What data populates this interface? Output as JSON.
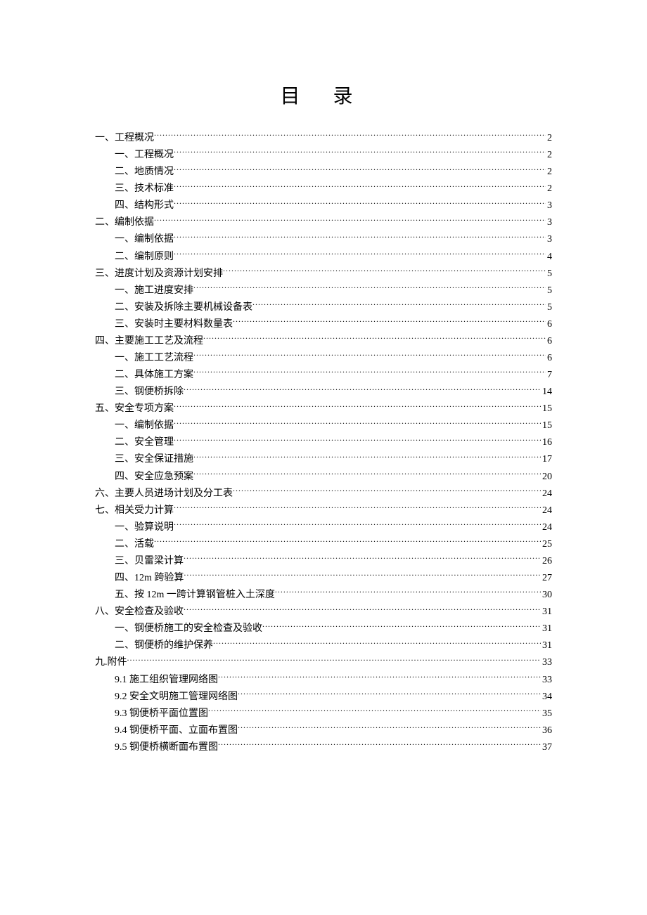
{
  "title": "目 录",
  "toc": [
    {
      "level": 1,
      "label": "一、工程概况",
      "page": "2"
    },
    {
      "level": 2,
      "label": "一、工程概况",
      "page": "2"
    },
    {
      "level": 2,
      "label": "二、地质情况",
      "page": "2"
    },
    {
      "level": 2,
      "label": "三、技术标准",
      "page": "2"
    },
    {
      "level": 2,
      "label": "四、结构形式",
      "page": "3"
    },
    {
      "level": 1,
      "label": "二、编制依据",
      "page": "3"
    },
    {
      "level": 2,
      "label": "一、编制依据",
      "page": "3"
    },
    {
      "level": 2,
      "label": "二、编制原则",
      "page": "4"
    },
    {
      "level": 1,
      "label": "三、进度计划及资源计划安排",
      "page": "5"
    },
    {
      "level": 2,
      "label": "一、施工进度安排",
      "page": "5"
    },
    {
      "level": 2,
      "label": "二、安装及拆除主要机械设备表",
      "page": "5"
    },
    {
      "level": 2,
      "label": "三、安装时主要材料数量表",
      "page": "6"
    },
    {
      "level": 1,
      "label": "四、主要施工工艺及流程",
      "page": "6"
    },
    {
      "level": 2,
      "label": "一、施工工艺流程",
      "page": "6"
    },
    {
      "level": 2,
      "label": "二、具体施工方案",
      "page": "7"
    },
    {
      "level": 2,
      "label": "三、钢便桥拆除",
      "page": "14"
    },
    {
      "level": 1,
      "label": "五、安全专项方案",
      "page": "15"
    },
    {
      "level": 2,
      "label": "一、编制依据",
      "page": "15"
    },
    {
      "level": 2,
      "label": "二、安全管理",
      "page": "16"
    },
    {
      "level": 2,
      "label": "三、安全保证措施",
      "page": "17"
    },
    {
      "level": 2,
      "label": "四、安全应急预案",
      "page": "20"
    },
    {
      "level": 1,
      "label": "六、主要人员进场计划及分工表",
      "page": "24"
    },
    {
      "level": 1,
      "label": "七、相关受力计算",
      "page": "24"
    },
    {
      "level": 2,
      "label": "一、验算说明",
      "page": "24"
    },
    {
      "level": 2,
      "label": "二、活载",
      "page": "25"
    },
    {
      "level": 2,
      "label": "三、贝雷梁计算",
      "page": "26"
    },
    {
      "level": 2,
      "label": "四、12m 跨验算",
      "page": "27"
    },
    {
      "level": 2,
      "label": "五、按 12m 一跨计算钢管桩入土深度",
      "page": "30"
    },
    {
      "level": 1,
      "label": "八、安全检查及验收",
      "page": "31"
    },
    {
      "level": 2,
      "label": "一、钢便桥施工的安全检查及验收",
      "page": "31"
    },
    {
      "level": 2,
      "label": "二、钢便桥的维护保养",
      "page": "31"
    },
    {
      "level": 1,
      "label": "九.附件",
      "page": "33"
    },
    {
      "level": 2,
      "label": "9.1 施工组织管理网络图",
      "page": "33"
    },
    {
      "level": 2,
      "label": "9.2 安全文明施工管理网络图",
      "page": "34"
    },
    {
      "level": 2,
      "label": "9.3 钢便桥平面位置图",
      "page": "35"
    },
    {
      "level": 2,
      "label": "9.4 钢便桥平面、立面布置图",
      "page": "36"
    },
    {
      "level": 2,
      "label": "9.5 钢便桥横断面布置图",
      "page": "37"
    }
  ],
  "colors": {
    "text": "#000000",
    "background": "#ffffff"
  },
  "typography": {
    "title_fontsize": 28,
    "body_fontsize": 14,
    "font_family": "SimSun"
  }
}
